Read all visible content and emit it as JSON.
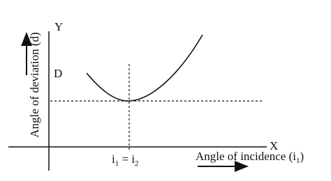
{
  "axes": {
    "y_letter": "Y",
    "x_letter": "X",
    "d_mark": "D"
  },
  "y_label": "Angle of deviation (d)",
  "x_label": [
    "Angle of incidence (i",
    "1",
    ")"
  ],
  "min_label": [
    "i",
    "1",
    " = i",
    "2"
  ]
}
